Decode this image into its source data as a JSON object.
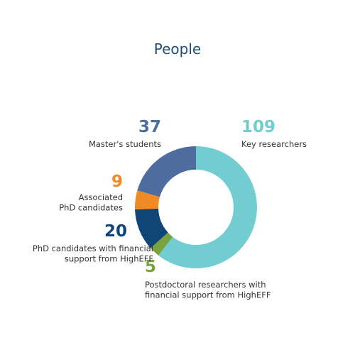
{
  "chart_data": {
    "type": "donut",
    "title": "People",
    "categories": [
      "Key researchers",
      "Postdoctoral researchers with\nfinancial support from HighEFF",
      "PhD candidates with financial\nsupport from HighEFF",
      "Associated\nPhD candidates",
      "Master's students"
    ],
    "values": [
      109,
      5,
      20,
      9,
      37
    ],
    "colors": [
      "#72cdd3",
      "#7aa23e",
      "#0f4577",
      "#f08a24",
      "#4e6d9e"
    ]
  }
}
